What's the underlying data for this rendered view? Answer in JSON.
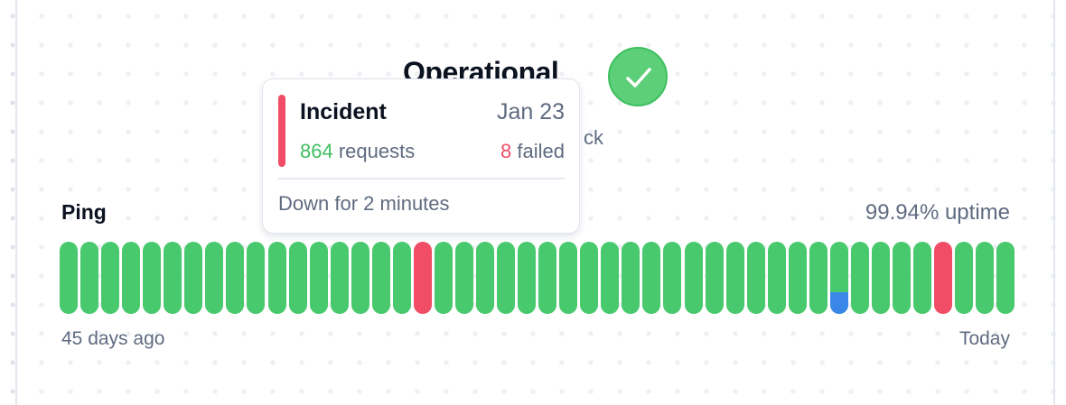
{
  "status": {
    "title": "Operational",
    "subtitle_visible": "ck",
    "icon": "check-circle-icon",
    "color": "#5ccf78"
  },
  "monitor": {
    "name": "Ping",
    "uptime": "99.94% uptime",
    "range_start_label": "45 days ago",
    "range_end_label": "Today",
    "colors": {
      "up": "#48c96d",
      "down": "#f14d66",
      "partial": "#3b87e8"
    },
    "days": [
      {
        "s": "up"
      },
      {
        "s": "up"
      },
      {
        "s": "up"
      },
      {
        "s": "up"
      },
      {
        "s": "up"
      },
      {
        "s": "up"
      },
      {
        "s": "up"
      },
      {
        "s": "up"
      },
      {
        "s": "up"
      },
      {
        "s": "up"
      },
      {
        "s": "up"
      },
      {
        "s": "up"
      },
      {
        "s": "up"
      },
      {
        "s": "up"
      },
      {
        "s": "up"
      },
      {
        "s": "up"
      },
      {
        "s": "up"
      },
      {
        "s": "down"
      },
      {
        "s": "up"
      },
      {
        "s": "up"
      },
      {
        "s": "up"
      },
      {
        "s": "up"
      },
      {
        "s": "up"
      },
      {
        "s": "up"
      },
      {
        "s": "up"
      },
      {
        "s": "up"
      },
      {
        "s": "up"
      },
      {
        "s": "up"
      },
      {
        "s": "up"
      },
      {
        "s": "up"
      },
      {
        "s": "up"
      },
      {
        "s": "up"
      },
      {
        "s": "up"
      },
      {
        "s": "up"
      },
      {
        "s": "up"
      },
      {
        "s": "up"
      },
      {
        "s": "up"
      },
      {
        "s": "partial",
        "partial_fraction": 0.3
      },
      {
        "s": "up"
      },
      {
        "s": "up"
      },
      {
        "s": "up"
      },
      {
        "s": "up"
      },
      {
        "s": "down"
      },
      {
        "s": "up"
      },
      {
        "s": "up"
      },
      {
        "s": "up"
      }
    ]
  },
  "tooltip": {
    "title": "Incident",
    "date": "Jan 23",
    "requests_count": "864",
    "requests_label": " requests",
    "failed_count": "8",
    "failed_label": " failed",
    "note": "Down for 2 minutes",
    "accent": "#f14d66",
    "requests_color": "#3fbf5f"
  }
}
